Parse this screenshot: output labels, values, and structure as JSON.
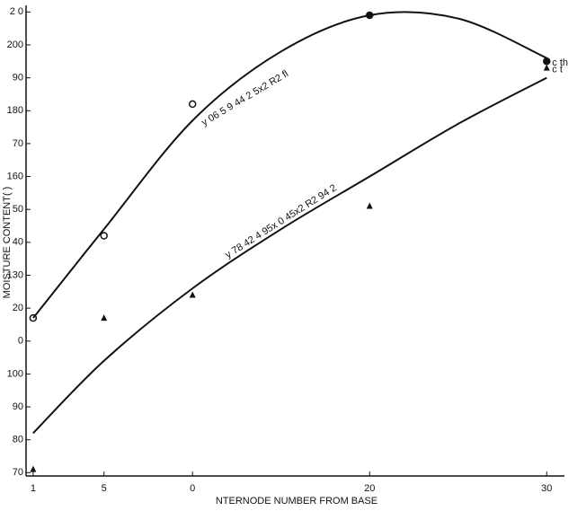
{
  "chart_data": {
    "type": "scatter",
    "y_label": "MOISTURE CONTENT( )",
    "x_label": "NTERNODE NUMBER FROM BASE",
    "xlim": [
      0.6,
      31
    ],
    "ylim": [
      69,
      212
    ],
    "xticks": [
      1,
      5,
      {
        "value": 10,
        "label": "0"
      },
      20,
      30
    ],
    "yticks": [
      {
        "value": 210,
        "label": "2 0"
      },
      200,
      {
        "value": 190,
        "label": "90"
      },
      180,
      {
        "value": 170,
        "label": "70"
      },
      160,
      {
        "value": 150,
        "label": "50"
      },
      {
        "value": 140,
        "label": "40"
      },
      130,
      {
        "value": 120,
        "label": "20"
      },
      {
        "value": 110,
        "label": "0"
      },
      100,
      90,
      80,
      70
    ],
    "series": [
      {
        "name": "c th",
        "marker": "circle",
        "color": "#111111",
        "x": [
          1,
          5,
          10,
          20,
          30
        ],
        "values": [
          117,
          142,
          182,
          209,
          195
        ]
      },
      {
        "name": "c t",
        "marker": "triangle",
        "color": "#111111",
        "x": [
          1,
          5,
          10,
          20,
          30
        ],
        "values": [
          71,
          117,
          124,
          151,
          193
        ]
      }
    ],
    "fits": [
      {
        "equation": "y 06 5 9 44  2 5x2 R2 fl",
        "x": [
          1,
          5,
          10,
          15,
          20,
          25,
          30
        ],
        "values": [
          117,
          144,
          177,
          198,
          209,
          208,
          196
        ]
      },
      {
        "equation": "y 78 42 4 95x 0 45x2 R2 94 2",
        "x": [
          1,
          5,
          10,
          15,
          20,
          25,
          30
        ],
        "values": [
          82,
          104,
          126,
          144,
          160,
          176,
          190
        ]
      }
    ]
  }
}
